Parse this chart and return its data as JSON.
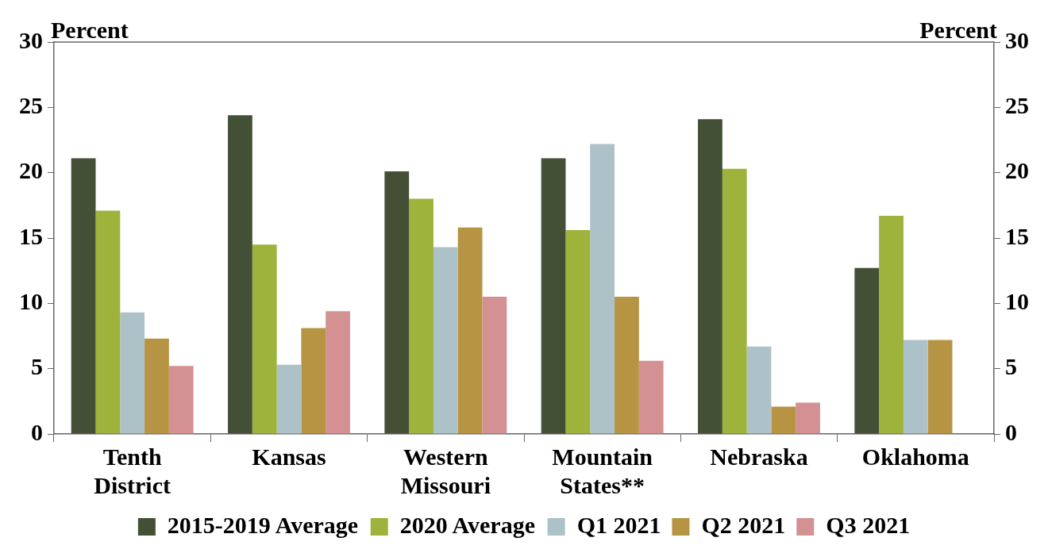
{
  "chart_data": {
    "type": "bar",
    "ylabel": "Percent",
    "y2label": "Percent",
    "categories": [
      "Tenth District",
      "Kansas",
      "Western Missouri",
      "Mountain States**",
      "Nebraska",
      "Oklahoma"
    ],
    "series": [
      {
        "name": "2015-2019 Average",
        "color": "#445035",
        "values": [
          21.1,
          24.4,
          20.1,
          21.1,
          24.1,
          12.7
        ]
      },
      {
        "name": "2020 Average",
        "color": "#9db33b",
        "values": [
          17.1,
          14.5,
          18.0,
          15.6,
          20.3,
          16.7
        ]
      },
      {
        "name": "Q1 2021",
        "color": "#adc1c8",
        "values": [
          9.3,
          5.3,
          14.3,
          22.2,
          6.7,
          7.2
        ]
      },
      {
        "name": "Q2 2021",
        "color": "#b79443",
        "values": [
          7.3,
          8.1,
          15.8,
          10.5,
          2.1,
          7.2
        ]
      },
      {
        "name": "Q3 2021",
        "color": "#d39193",
        "values": [
          5.2,
          9.4,
          10.5,
          5.6,
          2.4,
          null
        ]
      }
    ],
    "ylim": [
      0,
      30
    ],
    "yticks": [
      0,
      5,
      10,
      15,
      20,
      25,
      30
    ],
    "y2lim": [
      0,
      30
    ],
    "y2ticks": [
      0,
      5,
      10,
      15,
      20,
      25,
      30
    ],
    "grid": false,
    "legend": "bottom"
  }
}
